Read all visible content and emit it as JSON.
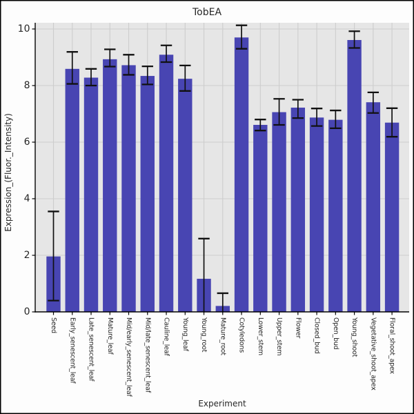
{
  "chart_data": {
    "type": "bar",
    "title": "TobEA",
    "xlabel": "Experiment",
    "ylabel": "Expression_(Fluor._Intensity)",
    "categories": [
      "Seed",
      "Early_senescent_leaf",
      "Late_senescent_leaf",
      "Mature_leaf",
      "Mid/early_senescent_leaf",
      "Mid/late_senescent_leaf",
      "Cauline_leaf",
      "Young_leaf",
      "Young_root",
      "Mature_root",
      "Cotyledons",
      "Lower_stem",
      "Upper_stem",
      "Flower",
      "Closed_bud",
      "Open_bud",
      "Young_shoot",
      "Vegetative_shoot_apex",
      "Floral_shoot_apex"
    ],
    "values": [
      1.96,
      8.59,
      8.28,
      8.93,
      8.72,
      8.34,
      9.09,
      8.24,
      1.17,
      0.21,
      9.7,
      6.61,
      7.06,
      7.22,
      6.87,
      6.79,
      9.61,
      7.41,
      6.69
    ],
    "error_low": [
      0.4,
      8.06,
      8.0,
      8.67,
      8.38,
      8.04,
      8.83,
      7.81,
      0.0,
      0.0,
      9.3,
      6.41,
      6.61,
      6.85,
      6.57,
      6.49,
      9.33,
      7.03,
      6.19
    ],
    "error_high": [
      3.55,
      9.19,
      8.59,
      9.28,
      9.09,
      8.68,
      9.42,
      8.71,
      2.59,
      0.66,
      10.13,
      6.8,
      7.53,
      7.5,
      7.19,
      7.12,
      9.92,
      7.76,
      7.2
    ],
    "yticks": [
      0,
      2,
      4,
      6,
      8,
      10
    ],
    "ylim": [
      0,
      10.25
    ],
    "grid": true,
    "legend": "none",
    "colors": {
      "bar": "#4845b2",
      "panel_background": "#e6e6e6",
      "gridline": "#cdcdcd",
      "error_bar": "#111111",
      "axis": "#000000",
      "text": "#262626",
      "figure_background": "#fdfdfd",
      "border": "#000000"
    }
  }
}
